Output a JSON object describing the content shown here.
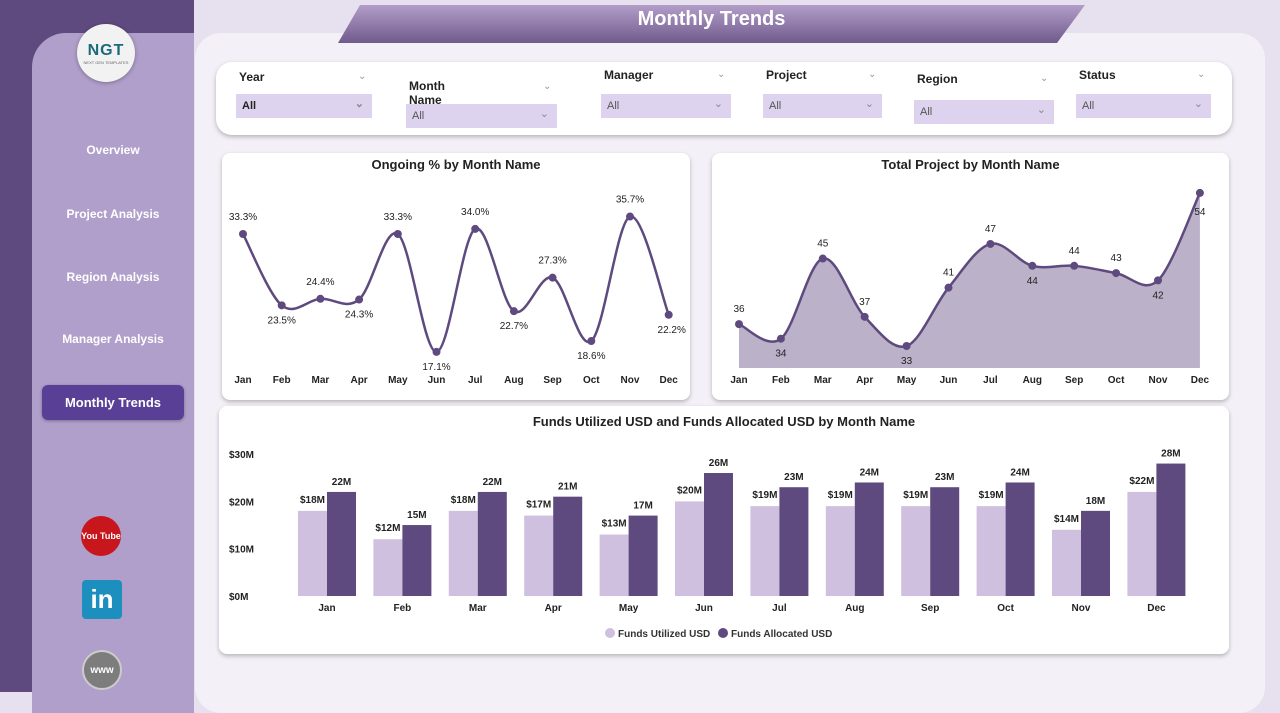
{
  "title": "Monthly Trends",
  "logo": {
    "text": "NGT",
    "subtext": "NEXT GEN TEMPLATES"
  },
  "sidebar": {
    "items": [
      {
        "label": "Overview"
      },
      {
        "label": "Project Analysis"
      },
      {
        "label": "Region Analysis"
      },
      {
        "label": "Manager Analysis"
      },
      {
        "label": "Monthly Trends",
        "active": true
      }
    ],
    "social": [
      {
        "icon": "youtube-icon",
        "text": "You Tube"
      },
      {
        "icon": "linkedin-icon",
        "text": "in"
      },
      {
        "icon": "www-globe-icon",
        "text": "www"
      }
    ]
  },
  "filters": [
    {
      "label": "Year",
      "value": "All"
    },
    {
      "label": "Month Name",
      "value": "All"
    },
    {
      "label": "Manager",
      "value": "All"
    },
    {
      "label": "Project",
      "value": "All"
    },
    {
      "label": "Region",
      "value": "All"
    },
    {
      "label": "Status",
      "value": "All"
    }
  ],
  "colors": {
    "dark": "#5e4a7e",
    "light": "#cfc0e0",
    "accent": "#5a3f96",
    "area": "#bbb1c8"
  },
  "chart_data": [
    {
      "type": "line",
      "title": "Ongoing % by Month Name",
      "categories": [
        "Jan",
        "Feb",
        "Mar",
        "Apr",
        "May",
        "Jun",
        "Jul",
        "Aug",
        "Sep",
        "Oct",
        "Nov",
        "Dec"
      ],
      "values": [
        33.3,
        23.5,
        24.4,
        24.3,
        33.3,
        17.1,
        34.0,
        22.7,
        27.3,
        18.6,
        35.7,
        22.2
      ],
      "labels": [
        "33.3%",
        "23.5%",
        "24.4%",
        "24.3%",
        "33.3%",
        "17.1%",
        "34.0%",
        "22.7%",
        "27.3%",
        "18.6%",
        "35.7%",
        "22.2%"
      ]
    },
    {
      "type": "area",
      "title": "Total Project by Month Name",
      "categories": [
        "Jan",
        "Feb",
        "Mar",
        "Apr",
        "May",
        "Jun",
        "Jul",
        "Aug",
        "Sep",
        "Oct",
        "Nov",
        "Dec"
      ],
      "values": [
        36,
        34,
        45,
        37,
        33,
        41,
        47,
        44,
        44,
        43,
        42,
        54
      ]
    },
    {
      "type": "bar",
      "title": "Funds Utilized USD and Funds Allocated USD by Month Name",
      "categories": [
        "Jan",
        "Feb",
        "Mar",
        "Apr",
        "May",
        "Jun",
        "Jul",
        "Aug",
        "Sep",
        "Oct",
        "Nov",
        "Dec"
      ],
      "yticks": [
        "$0M",
        "$10M",
        "$20M",
        "$30M"
      ],
      "ylim": [
        0,
        30
      ],
      "series": [
        {
          "name": "Funds Utilized USD",
          "values": [
            18,
            12,
            18,
            17,
            13,
            20,
            19,
            19,
            19,
            19,
            14,
            22
          ],
          "labels": [
            "$18M",
            "$12M",
            "$18M",
            "$17M",
            "$13M",
            "$20M",
            "$19M",
            "$19M",
            "$19M",
            "$19M",
            "$14M",
            "$22M"
          ]
        },
        {
          "name": "Funds Allocated USD",
          "values": [
            22,
            15,
            22,
            21,
            17,
            26,
            23,
            24,
            23,
            24,
            18,
            28
          ],
          "labels": [
            "22M",
            "15M",
            "22M",
            "21M",
            "17M",
            "26M",
            "23M",
            "24M",
            "23M",
            "24M",
            "18M",
            "28M"
          ]
        }
      ]
    }
  ]
}
